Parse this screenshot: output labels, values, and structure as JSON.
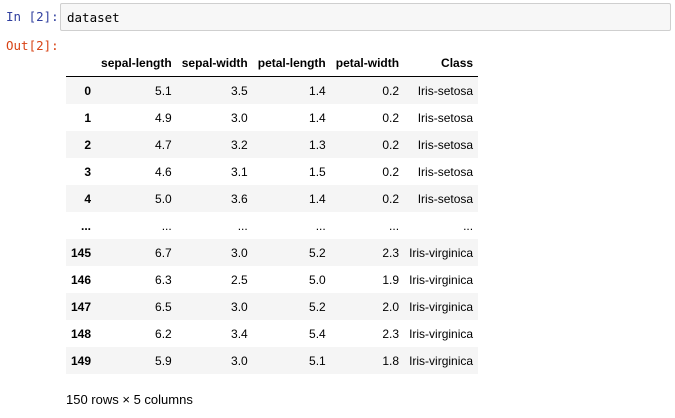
{
  "cell": {
    "in_prompt": "In [2]:",
    "code": "dataset",
    "out_prompt": "Out[2]:"
  },
  "table": {
    "columns": [
      "",
      "sepal-length",
      "sepal-width",
      "petal-length",
      "petal-width",
      "Class"
    ],
    "rows": [
      [
        "0",
        "5.1",
        "3.5",
        "1.4",
        "0.2",
        "Iris-setosa"
      ],
      [
        "1",
        "4.9",
        "3.0",
        "1.4",
        "0.2",
        "Iris-setosa"
      ],
      [
        "2",
        "4.7",
        "3.2",
        "1.3",
        "0.2",
        "Iris-setosa"
      ],
      [
        "3",
        "4.6",
        "3.1",
        "1.5",
        "0.2",
        "Iris-setosa"
      ],
      [
        "4",
        "5.0",
        "3.6",
        "1.4",
        "0.2",
        "Iris-setosa"
      ],
      [
        "...",
        "...",
        "...",
        "...",
        "...",
        "..."
      ],
      [
        "145",
        "6.7",
        "3.0",
        "5.2",
        "2.3",
        "Iris-virginica"
      ],
      [
        "146",
        "6.3",
        "2.5",
        "5.0",
        "1.9",
        "Iris-virginica"
      ],
      [
        "147",
        "6.5",
        "3.0",
        "5.2",
        "2.0",
        "Iris-virginica"
      ],
      [
        "148",
        "6.2",
        "3.4",
        "5.4",
        "2.3",
        "Iris-virginica"
      ],
      [
        "149",
        "5.9",
        "3.0",
        "5.1",
        "1.8",
        "Iris-virginica"
      ]
    ],
    "shape": "150 rows × 5 columns"
  }
}
